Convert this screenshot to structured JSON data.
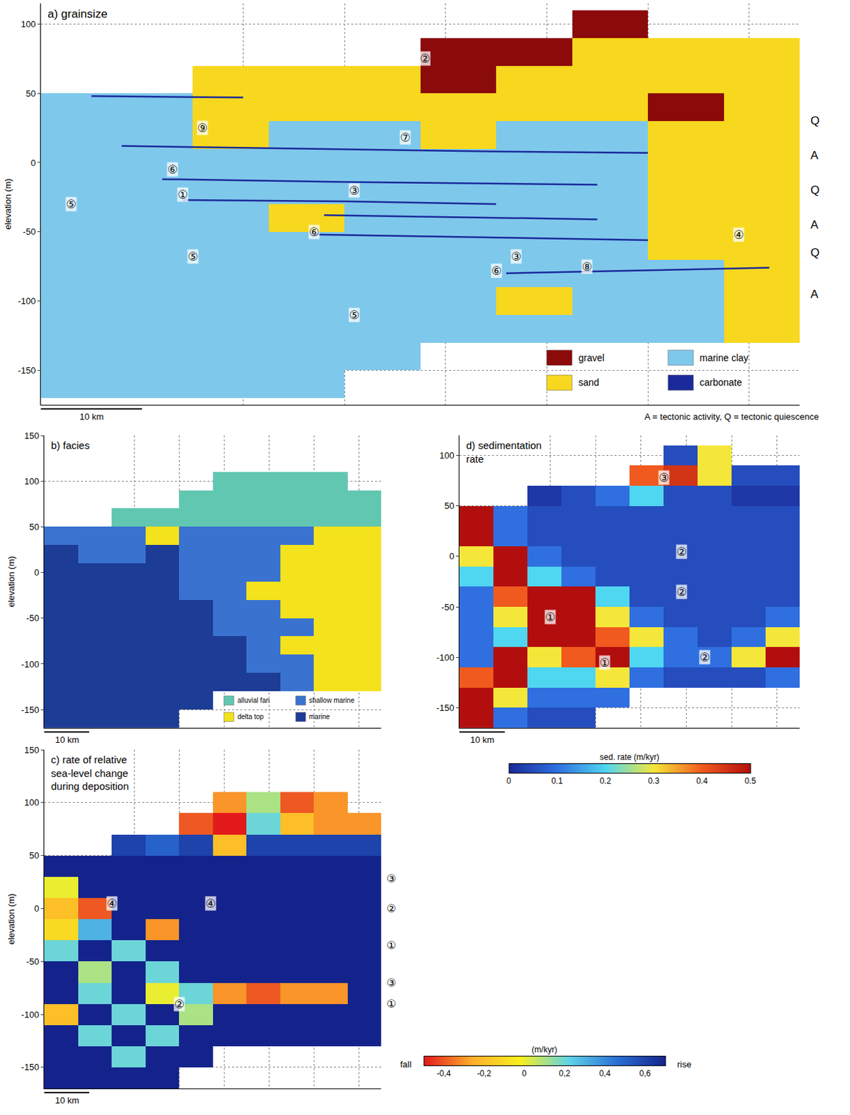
{
  "chart_data": [
    {
      "type": "heatmap",
      "title": "a) grainsize",
      "y_label": "elevation (m)",
      "xlim": [
        0,
        75
      ],
      "ylim": [
        -175,
        115
      ],
      "xticks": [
        20,
        30,
        40,
        50,
        60,
        70
      ],
      "yticks": [
        -150,
        -100,
        -50,
        0,
        50,
        100
      ],
      "grid": true,
      "tick_labels": "y",
      "classes": [
        {
          "name": "gravel",
          "color": "#8b0a0a"
        },
        {
          "name": "sand",
          "color": "#f7d81e"
        },
        {
          "name": "marine clay",
          "color": "#7ec8ec"
        },
        {
          "name": "carbonate",
          "color": "#1a2a9a"
        }
      ],
      "x": [
        3.75,
        11.25,
        18.75,
        26.25,
        33.75,
        41.25,
        48.75,
        56.25,
        63.75,
        71.25
      ],
      "y": [
        100,
        80,
        60,
        40,
        20,
        0,
        -20,
        -40,
        -60,
        -80,
        -100,
        -120,
        -140,
        -160
      ],
      "cells": [
        [
          null,
          null,
          null,
          null,
          null,
          null,
          null,
          0,
          null,
          null
        ],
        [
          null,
          null,
          null,
          null,
          null,
          0,
          0,
          1,
          1,
          1
        ],
        [
          null,
          null,
          1,
          1,
          1,
          0,
          1,
          1,
          1,
          1
        ],
        [
          2,
          2,
          1,
          1,
          1,
          1,
          1,
          1,
          0,
          1
        ],
        [
          2,
          2,
          1,
          2,
          2,
          1,
          2,
          2,
          1,
          1
        ],
        [
          2,
          2,
          2,
          2,
          2,
          2,
          2,
          2,
          1,
          1
        ],
        [
          2,
          2,
          2,
          2,
          2,
          2,
          2,
          2,
          1,
          1
        ],
        [
          2,
          2,
          2,
          1,
          2,
          2,
          2,
          2,
          1,
          1
        ],
        [
          2,
          2,
          2,
          2,
          2,
          2,
          2,
          2,
          1,
          1
        ],
        [
          2,
          2,
          2,
          2,
          2,
          2,
          2,
          2,
          2,
          1
        ],
        [
          2,
          2,
          2,
          2,
          2,
          2,
          1,
          2,
          2,
          1
        ],
        [
          2,
          2,
          2,
          2,
          2,
          2,
          2,
          2,
          2,
          1
        ],
        [
          2,
          2,
          2,
          2,
          2,
          null,
          null,
          null,
          null,
          null
        ],
        [
          2,
          2,
          2,
          2,
          null,
          null,
          null,
          null,
          null,
          null
        ]
      ],
      "layer_class": 3,
      "carbonate_layers": [
        {
          "x": [
            5,
            20
          ],
          "y": [
            48,
            47
          ]
        },
        {
          "x": [
            8,
            25,
            45,
            60
          ],
          "y": [
            12,
            10,
            8,
            7
          ]
        },
        {
          "x": [
            12,
            30,
            55
          ],
          "y": [
            -12,
            -14,
            -16
          ]
        },
        {
          "x": [
            14,
            30,
            45
          ],
          "y": [
            -27,
            -28,
            -30
          ]
        },
        {
          "x": [
            28,
            45,
            55
          ],
          "y": [
            -38,
            -40,
            -41
          ]
        },
        {
          "x": [
            27,
            45,
            60
          ],
          "y": [
            -52,
            -54,
            -56
          ]
        },
        {
          "x": [
            46,
            60,
            72
          ],
          "y": [
            -80,
            -78,
            -76
          ]
        }
      ],
      "labels": [
        {
          "x": 38,
          "y": 75,
          "text": "②"
        },
        {
          "x": 16,
          "y": 25,
          "text": "⑨"
        },
        {
          "x": 36,
          "y": 18,
          "text": "⑦"
        },
        {
          "x": 13,
          "y": -5,
          "text": "⑥"
        },
        {
          "x": 31,
          "y": -20,
          "text": "③"
        },
        {
          "x": 14,
          "y": -23,
          "text": "①"
        },
        {
          "x": 3,
          "y": -30,
          "text": "⑤"
        },
        {
          "x": 15,
          "y": -68,
          "text": "⑤"
        },
        {
          "x": 27,
          "y": -50,
          "text": "⑥"
        },
        {
          "x": 47,
          "y": -68,
          "text": "③"
        },
        {
          "x": 69,
          "y": -52,
          "text": "④"
        },
        {
          "x": 45,
          "y": -78,
          "text": "⑥"
        },
        {
          "x": 54,
          "y": -75,
          "text": "⑧"
        },
        {
          "x": 31,
          "y": -110,
          "text": "⑤"
        }
      ],
      "side_labels": [
        {
          "y": 30,
          "text": "Q"
        },
        {
          "y": 5,
          "text": "A"
        },
        {
          "y": -20,
          "text": "Q"
        },
        {
          "y": -45,
          "text": "A"
        },
        {
          "y": -65,
          "text": "Q"
        },
        {
          "y": -95,
          "text": "A"
        }
      ],
      "footnote": "A = tectonic activity, Q = tectonic quiescence",
      "scale_bar": {
        "length": 10,
        "label": "10 km"
      }
    },
    {
      "type": "heatmap",
      "title": "b) facies",
      "y_label": "elevation (m)",
      "xlim": [
        0,
        75
      ],
      "ylim": [
        -170,
        150
      ],
      "xticks": [
        20,
        30,
        40,
        50,
        60,
        70
      ],
      "yticks": [
        -150,
        -100,
        -50,
        0,
        50,
        100,
        150
      ],
      "grid": true,
      "tick_labels": "y",
      "classes": [
        {
          "name": "alluvial fan",
          "color": "#62c7b0"
        },
        {
          "name": "delta top",
          "color": "#f3e21c"
        },
        {
          "name": "shallow marine",
          "color": "#3a72cf"
        },
        {
          "name": "marine",
          "color": "#1c3c96"
        }
      ],
      "x": [
        3.75,
        11.25,
        18.75,
        26.25,
        33.75,
        41.25,
        48.75,
        56.25,
        63.75,
        71.25
      ],
      "y": [
        100,
        80,
        60,
        40,
        20,
        0,
        -20,
        -40,
        -60,
        -80,
        -100,
        -120,
        -140,
        -160
      ],
      "cells": [
        [
          null,
          null,
          null,
          null,
          null,
          0,
          0,
          0,
          0,
          null
        ],
        [
          null,
          null,
          null,
          null,
          0,
          0,
          0,
          0,
          0,
          0
        ],
        [
          null,
          null,
          0,
          0,
          0,
          0,
          0,
          0,
          0,
          0
        ],
        [
          2,
          2,
          2,
          1,
          2,
          2,
          2,
          2,
          1,
          1
        ],
        [
          3,
          2,
          2,
          3,
          2,
          2,
          2,
          1,
          1,
          1
        ],
        [
          3,
          3,
          3,
          3,
          2,
          2,
          2,
          1,
          1,
          1
        ],
        [
          3,
          3,
          3,
          3,
          2,
          2,
          1,
          1,
          1,
          1
        ],
        [
          3,
          3,
          3,
          3,
          3,
          2,
          2,
          1,
          1,
          1
        ],
        [
          3,
          3,
          3,
          3,
          3,
          2,
          2,
          2,
          1,
          1
        ],
        [
          3,
          3,
          3,
          3,
          3,
          3,
          2,
          1,
          1,
          1
        ],
        [
          3,
          3,
          3,
          3,
          3,
          3,
          2,
          2,
          1,
          1
        ],
        [
          3,
          3,
          3,
          3,
          3,
          3,
          3,
          2,
          1,
          1
        ],
        [
          3,
          3,
          3,
          3,
          3,
          null,
          null,
          null,
          null,
          null
        ],
        [
          3,
          3,
          3,
          3,
          null,
          null,
          null,
          null,
          null,
          null
        ]
      ],
      "scale_bar": {
        "length": 10,
        "label": "10 km"
      }
    },
    {
      "type": "heatmap",
      "title": "c) rate of relative sea-level change during deposition",
      "y_label": "elevation (m)",
      "xlim": [
        0,
        75
      ],
      "ylim": [
        -170,
        150
      ],
      "xticks": [
        20,
        30,
        40,
        50,
        60,
        70
      ],
      "yticks": [
        -150,
        -100,
        -50,
        0,
        50,
        100,
        150
      ],
      "grid": true,
      "tick_labels": "y",
      "colors": [
        "#e31a1c",
        "#fdae2b",
        "#f7f01f",
        "#5fd3e8",
        "#2b6fd6",
        "#14238c"
      ],
      "zlim": [
        -0.5,
        0.7
      ],
      "colorbar": {
        "title": "(m/kyr)",
        "ticks": [
          {
            "value": -0.4,
            "label": "-0,4"
          },
          {
            "value": -0.2,
            "label": "-0,2"
          },
          0,
          {
            "value": 0.2,
            "label": "0,2"
          },
          {
            "value": 0.4,
            "label": "0,4"
          },
          {
            "value": 0.6,
            "label": "0,6"
          }
        ],
        "low_label": "fall",
        "high_label": "rise"
      },
      "x": [
        3.75,
        11.25,
        18.75,
        26.25,
        33.75,
        41.25,
        48.75,
        56.25,
        63.75,
        71.25
      ],
      "y": [
        100,
        80,
        60,
        40,
        20,
        0,
        -20,
        -40,
        -60,
        -80,
        -100,
        -120,
        -140,
        -160
      ],
      "cells": [
        [
          null,
          null,
          null,
          null,
          null,
          -0.3,
          0.1,
          -0.4,
          -0.3,
          null
        ],
        [
          null,
          null,
          null,
          null,
          -0.4,
          -0.5,
          0.2,
          -0.2,
          -0.3,
          -0.3
        ],
        [
          null,
          null,
          0.6,
          0.5,
          0.6,
          -0.2,
          0.6,
          0.6,
          0.6,
          0.6
        ],
        [
          0.7,
          0.7,
          0.7,
          0.7,
          0.7,
          0.7,
          0.7,
          0.7,
          0.7,
          0.7
        ],
        [
          0.0,
          0.7,
          0.7,
          0.7,
          0.7,
          0.7,
          0.7,
          0.7,
          0.7,
          0.7
        ],
        [
          -0.2,
          -0.4,
          0.7,
          0.7,
          0.7,
          0.7,
          0.7,
          0.7,
          0.7,
          0.7
        ],
        [
          -0.1,
          0.3,
          0.7,
          -0.3,
          0.7,
          0.7,
          0.7,
          0.7,
          0.7,
          0.7
        ],
        [
          0.2,
          0.7,
          0.2,
          0.7,
          0.7,
          0.7,
          0.7,
          0.7,
          0.7,
          0.7
        ],
        [
          0.7,
          0.1,
          0.7,
          0.2,
          0.7,
          0.7,
          0.7,
          0.7,
          0.7,
          0.7
        ],
        [
          0.7,
          0.2,
          0.7,
          0.0,
          0.2,
          -0.3,
          -0.4,
          -0.3,
          -0.3,
          0.7
        ],
        [
          -0.2,
          0.7,
          0.2,
          0.7,
          0.1,
          0.7,
          0.7,
          0.7,
          0.7,
          0.7
        ],
        [
          0.7,
          0.2,
          0.7,
          0.2,
          0.7,
          0.7,
          0.7,
          0.7,
          0.7,
          0.7
        ],
        [
          0.7,
          0.7,
          0.2,
          0.7,
          0.7,
          null,
          null,
          null,
          null,
          null
        ],
        [
          0.7,
          0.7,
          0.7,
          0.7,
          null,
          null,
          null,
          null,
          null,
          null
        ]
      ],
      "labels": [
        {
          "x": 15,
          "y": 5,
          "text": "④"
        },
        {
          "x": 37,
          "y": 5,
          "text": "④"
        },
        {
          "x": 30,
          "y": -90,
          "text": "②"
        }
      ],
      "side_labels": [
        {
          "y": 28,
          "text": "③"
        },
        {
          "y": 0,
          "text": "②"
        },
        {
          "y": -35,
          "text": "①"
        },
        {
          "y": -70,
          "text": "③"
        },
        {
          "y": -90,
          "text": "①"
        }
      ],
      "scale_bar": {
        "length": 10,
        "label": "10 km"
      }
    },
    {
      "type": "heatmap",
      "title": "d) sedimentation rate",
      "xlim": [
        0,
        75
      ],
      "ylim": [
        -170,
        120
      ],
      "xticks": [
        20,
        30,
        40,
        50,
        60,
        70
      ],
      "yticks": [
        -150,
        -100,
        -50,
        0,
        50,
        100
      ],
      "grid": true,
      "tick_labels": "y",
      "colors": [
        "#1a2a9a",
        "#2f6fe0",
        "#4fd6f0",
        "#f5e63a",
        "#f05a1e",
        "#b30e0e"
      ],
      "zlim": [
        0,
        0.5
      ],
      "colorbar": {
        "title": "sed. rate (m/kyr)",
        "ticks": [
          0,
          0.1,
          0.2,
          0.3,
          0.4,
          0.5
        ]
      },
      "x": [
        3.75,
        11.25,
        18.75,
        26.25,
        33.75,
        41.25,
        48.75,
        56.25,
        63.75,
        71.25
      ],
      "y": [
        100,
        80,
        60,
        40,
        20,
        0,
        -20,
        -40,
        -60,
        -80,
        -100,
        -120,
        -140,
        -160
      ],
      "cells": [
        [
          null,
          null,
          null,
          null,
          null,
          null,
          0.05,
          0.3,
          null,
          null
        ],
        [
          null,
          null,
          null,
          null,
          null,
          0.4,
          0.45,
          0.3,
          0.05,
          0.05
        ],
        [
          null,
          null,
          0.02,
          0.05,
          0.1,
          0.2,
          0.05,
          0.05,
          0.02,
          0.02
        ],
        [
          0.5,
          0.1,
          0.05,
          0.05,
          0.05,
          0.05,
          0.05,
          0.05,
          0.05,
          0.05
        ],
        [
          0.5,
          0.1,
          0.05,
          0.05,
          0.05,
          0.05,
          0.05,
          0.05,
          0.05,
          0.05
        ],
        [
          0.3,
          0.5,
          0.1,
          0.05,
          0.05,
          0.05,
          0.05,
          0.05,
          0.05,
          0.05
        ],
        [
          0.2,
          0.5,
          0.2,
          0.1,
          0.05,
          0.05,
          0.05,
          0.05,
          0.05,
          0.05
        ],
        [
          0.1,
          0.4,
          0.5,
          0.5,
          0.2,
          0.05,
          0.05,
          0.05,
          0.05,
          0.05
        ],
        [
          0.1,
          0.3,
          0.5,
          0.5,
          0.3,
          0.1,
          0.05,
          0.05,
          0.05,
          0.1
        ],
        [
          0.1,
          0.2,
          0.5,
          0.5,
          0.4,
          0.3,
          0.1,
          0.05,
          0.1,
          0.3
        ],
        [
          0.1,
          0.5,
          0.3,
          0.4,
          0.5,
          0.2,
          0.1,
          0.1,
          0.3,
          0.5
        ],
        [
          0.4,
          0.5,
          0.2,
          0.2,
          0.3,
          0.1,
          0.05,
          0.05,
          0.05,
          0.1
        ],
        [
          0.5,
          0.3,
          0.1,
          0.1,
          0.1,
          null,
          null,
          null,
          null,
          null
        ],
        [
          0.5,
          0.1,
          0.05,
          0.05,
          null,
          null,
          null,
          null,
          null,
          null
        ]
      ],
      "labels": [
        {
          "x": 45,
          "y": 78,
          "text": "③"
        },
        {
          "x": 49,
          "y": 5,
          "text": "②"
        },
        {
          "x": 49,
          "y": -35,
          "text": "②"
        },
        {
          "x": 54,
          "y": -100,
          "text": "②"
        },
        {
          "x": 20,
          "y": -60,
          "text": "①"
        },
        {
          "x": 32,
          "y": -105,
          "text": "①"
        }
      ],
      "scale_bar": {
        "length": 10,
        "label": "10 km"
      }
    }
  ]
}
